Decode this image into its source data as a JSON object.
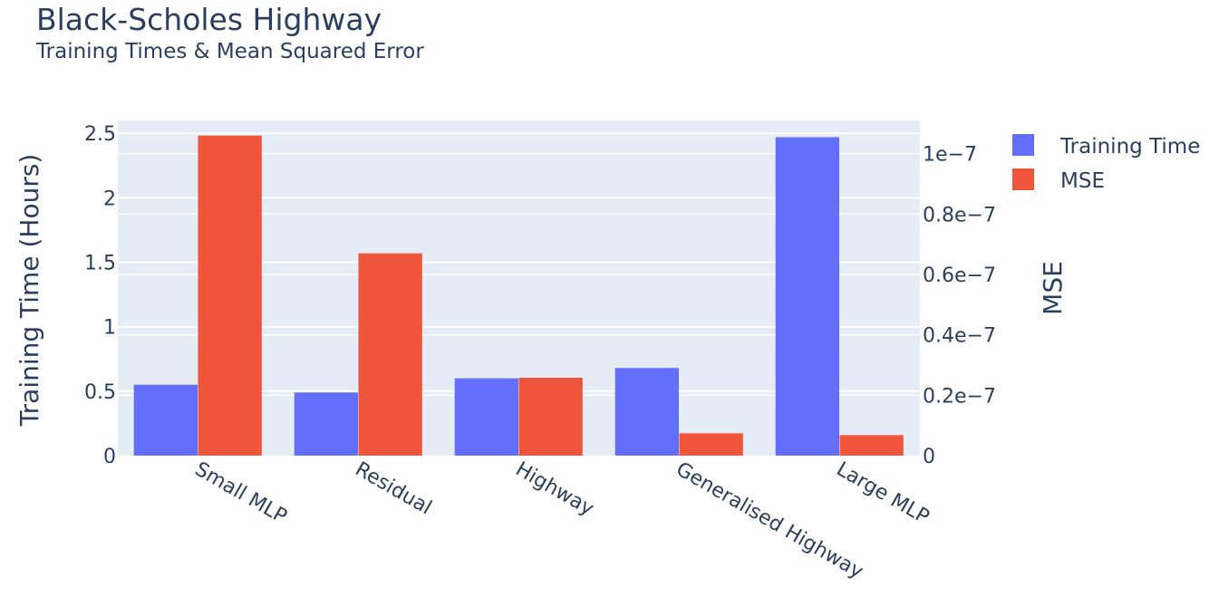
{
  "chart_data": {
    "type": "bar",
    "title": "Black-Scholes Highway",
    "subtitle": "Training Times & Mean Squared Error",
    "categories": [
      "Small MLP",
      "Residual",
      "Highway",
      "Generalised Highway",
      "Large MLP"
    ],
    "series": [
      {
        "name": "Training Time",
        "axis": "left",
        "color": "#636efa",
        "values": [
          0.55,
          0.49,
          0.6,
          0.68,
          2.47
        ]
      },
      {
        "name": "MSE",
        "axis": "right",
        "color": "#ef553b",
        "values": [
          1.06e-07,
          6.7e-08,
          2.58e-08,
          7.4e-09,
          6.8e-09
        ]
      }
    ],
    "ylabel": "Training Time (Hours)",
    "y2label": "MSE",
    "ylim": [
      0,
      2.6
    ],
    "y2lim": [
      0,
      1.11e-07
    ],
    "yticks": [
      {
        "value": 0,
        "label": "0"
      },
      {
        "value": 0.5,
        "label": "0.5"
      },
      {
        "value": 1,
        "label": "1"
      },
      {
        "value": 1.5,
        "label": "1.5"
      },
      {
        "value": 2,
        "label": "2"
      },
      {
        "value": 2.5,
        "label": "2.5"
      }
    ],
    "y2ticks": [
      {
        "value": 0,
        "label": "0"
      },
      {
        "value": 2e-08,
        "label": "0.2e−7"
      },
      {
        "value": 4e-08,
        "label": "0.4e−7"
      },
      {
        "value": 6e-08,
        "label": "0.6e−7"
      },
      {
        "value": 8e-08,
        "label": "0.8e−7"
      },
      {
        "value": 1e-07,
        "label": "1e−7"
      }
    ],
    "grid": true,
    "legend_position": "top-right",
    "plot_background": "#e5ecf6"
  }
}
